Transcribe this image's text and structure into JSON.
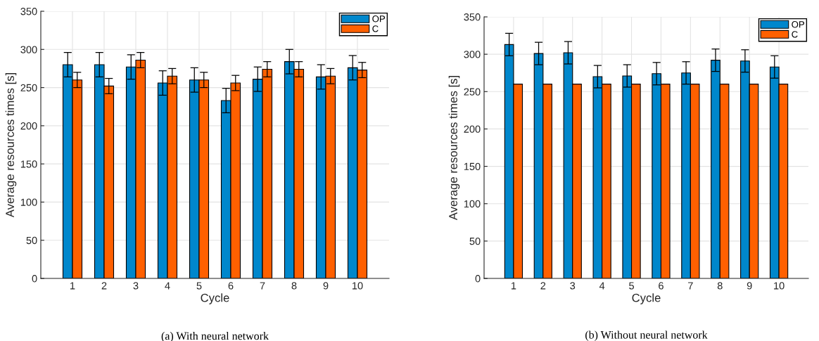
{
  "chart_data": [
    {
      "type": "bar",
      "xlabel": "Cycle",
      "ylabel": "Average resources times [s]",
      "categories": [
        "1",
        "2",
        "3",
        "4",
        "5",
        "6",
        "7",
        "8",
        "9",
        "10"
      ],
      "ylim": [
        0,
        350
      ],
      "yticks": [
        0,
        50,
        100,
        150,
        200,
        250,
        300,
        350
      ],
      "grid": true,
      "legend": "top right",
      "annotations": [
        "(a) With neural network"
      ],
      "series": [
        {
          "name": "OP",
          "color": "#0087cc",
          "values": [
            280,
            280,
            277,
            256,
            260,
            233,
            261,
            284,
            264,
            276
          ],
          "errors": [
            16,
            16,
            16,
            16,
            16,
            16,
            16,
            16,
            16,
            16
          ]
        },
        {
          "name": "C",
          "color": "#ff6000",
          "values": [
            260,
            252,
            286,
            265,
            260,
            256,
            274,
            274,
            265,
            273
          ],
          "errors": [
            10,
            10,
            10,
            10,
            10,
            10,
            10,
            10,
            10,
            10
          ]
        }
      ]
    },
    {
      "type": "bar",
      "xlabel": "Cycle",
      "ylabel": "Average resources times [s]",
      "categories": [
        "1",
        "2",
        "3",
        "4",
        "5",
        "6",
        "7",
        "8",
        "9",
        "10"
      ],
      "ylim": [
        0,
        350
      ],
      "yticks": [
        0,
        50,
        100,
        150,
        200,
        250,
        300,
        350
      ],
      "grid": true,
      "legend": "top right",
      "annotations": [
        "(b) Without neural network"
      ],
      "series": [
        {
          "name": "OP",
          "color": "#0087cc",
          "values": [
            313,
            301,
            302,
            270,
            271,
            274,
            275,
            292,
            291,
            283
          ],
          "errors": [
            15,
            15,
            15,
            15,
            15,
            15,
            15,
            15,
            15,
            15
          ]
        },
        {
          "name": "C",
          "color": "#ff6000",
          "values": [
            260,
            260,
            260,
            260,
            260,
            260,
            260,
            260,
            260,
            260
          ]
        }
      ]
    }
  ]
}
